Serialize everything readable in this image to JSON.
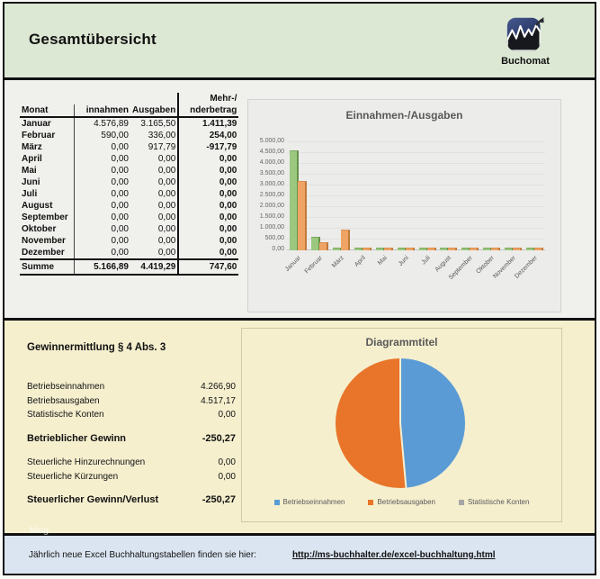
{
  "header": {
    "title": "Gesamtübersicht",
    "brand": "Buchomat"
  },
  "table": {
    "header_line1_last": "Mehr-/",
    "col_headers_line2": [
      "Monat",
      "innahmen",
      "Ausgaben",
      "nderbetrag"
    ],
    "rows": [
      [
        "Januar",
        "4.576,89",
        "3.165,50",
        "1.411,39"
      ],
      [
        "Februar",
        "590,00",
        "336,00",
        "254,00"
      ],
      [
        "März",
        "0,00",
        "917,79",
        "-917,79"
      ],
      [
        "April",
        "0,00",
        "0,00",
        "0,00"
      ],
      [
        "Mai",
        "0,00",
        "0,00",
        "0,00"
      ],
      [
        "Juni",
        "0,00",
        "0,00",
        "0,00"
      ],
      [
        "Juli",
        "0,00",
        "0,00",
        "0,00"
      ],
      [
        "August",
        "0,00",
        "0,00",
        "0,00"
      ],
      [
        "September",
        "0,00",
        "0,00",
        "0,00"
      ],
      [
        "Oktober",
        "0,00",
        "0,00",
        "0,00"
      ],
      [
        "November",
        "0,00",
        "0,00",
        "0,00"
      ],
      [
        "Dezember",
        "0,00",
        "0,00",
        "0,00"
      ]
    ],
    "total_row": [
      "Summe",
      "5.166,89",
      "4.419,29",
      "747,60"
    ]
  },
  "chart_data": [
    {
      "type": "bar",
      "title": "Einnahmen-/Ausgaben",
      "categories": [
        "Januar",
        "Februar",
        "März",
        "April",
        "Mai",
        "Juni",
        "Juli",
        "August",
        "September",
        "Oktober",
        "November",
        "Dezember"
      ],
      "series": [
        {
          "name": "Einnahmen",
          "color": "#9cc77e",
          "values": [
            4576.89,
            590,
            0,
            0,
            0,
            0,
            0,
            0,
            0,
            0,
            0,
            0
          ]
        },
        {
          "name": "Ausgaben",
          "color": "#efa465",
          "values": [
            3165.5,
            336,
            917.79,
            0,
            0,
            0,
            0,
            0,
            0,
            0,
            0,
            0
          ]
        }
      ],
      "ylim": [
        0,
        5000
      ],
      "ytick_labels": [
        "0,00",
        "500,00",
        "1.000,00",
        "1.500,00",
        "2.000,00",
        "2.500,00",
        "3.000,00",
        "3.500,00",
        "4.000,00",
        "4.500,00",
        "5.000,00"
      ],
      "grid": true,
      "legend_position": "none"
    },
    {
      "type": "pie",
      "title": "Diagrammtitel",
      "labels": [
        "Betriebseinnahmen",
        "Betriebsausgaben",
        "Statistische Konten"
      ],
      "values": [
        4266.9,
        4517.17,
        0.0
      ],
      "colors": [
        "#5b9bd5",
        "#e8752a",
        "#a6a6a6"
      ],
      "legend_position": "bottom"
    }
  ],
  "gewinn": {
    "title": "Gewinnermittlung § 4 Abs. 3",
    "rows": [
      {
        "label": "Betriebseinnahmen",
        "value": "4.266,90",
        "bold": false,
        "gap": false
      },
      {
        "label": "Betriebsausgaben",
        "value": "4.517,17",
        "bold": false,
        "gap": false
      },
      {
        "label": "Statistische Konten",
        "value": "0,00",
        "bold": false,
        "gap": false
      },
      {
        "label": "Betrieblicher Gewinn",
        "value": "-250,27",
        "bold": true,
        "gap": true
      },
      {
        "label": "Steuerliche Hinzurechnungen",
        "value": "0,00",
        "bold": false,
        "gap": true
      },
      {
        "label": "Steuerliche Kürzungen",
        "value": "0,00",
        "bold": false,
        "gap": false
      },
      {
        "label": "Steuerlicher Gewinn/Verlust",
        "value": "-250,27",
        "bold": true,
        "gap": true
      }
    ]
  },
  "footer": {
    "text": "Jährlich neue Excel Buchhaltungstabellen finden sie hier:",
    "link": "http://ms-buchhalter.de/excel-buchhaltung.html"
  },
  "watermark": "blog",
  "colors": {
    "header_bg": "#dde8d4",
    "mid_bg": "#f0f0ed",
    "cream_bg": "#f5efce",
    "footer_bg": "#dbe5f1",
    "bar_green": "#9cc77e",
    "bar_orange": "#efa465",
    "pie_blue": "#5b9bd5",
    "pie_orange": "#e8752a",
    "legend_gray": "#a6a6a6"
  }
}
